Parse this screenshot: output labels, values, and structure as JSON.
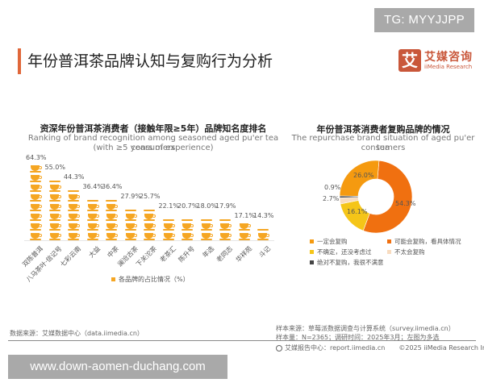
{
  "watermark_top": "TG: MYYJJPP",
  "watermark_bottom": "www.down-aomen-duchang.com",
  "header": {
    "title": "年份普洱茶品牌认知与复购行为分析",
    "logo_mark": "艾",
    "logo_cn": "艾媒咨询",
    "logo_en": "iiMedia Research",
    "accent_color": "#e0673a"
  },
  "left_chart": {
    "title_cn": "资深年份普洱茶消费者（接触年限≥5年）品牌知名度排名",
    "title_en_1": "Ranking of brand recognition among seasoned aged pu'er tea consumers",
    "title_en_2": "(with ≥5 years of experience)",
    "legend": "各品牌的占比情况（%）"
  },
  "right_chart": {
    "title_cn": "年份普洱茶消费者复购品牌的情况",
    "title_en_1": "The repurchase brand situation of aged pu'er tea",
    "title_en_2": "consumers"
  },
  "chart_data": [
    {
      "type": "bar",
      "title": "资深年份普洱茶消费者（接触年限≥5年）品牌知名度排名",
      "subtitle": "Ranking of brand recognition among seasoned aged pu'er tea consumers (with ≥5 years of experience)",
      "categories": [
        "双陈普洱",
        "八马茶叶·信记号",
        "七彩云南",
        "大益",
        "中茶",
        "澜沧古茶",
        "下关沱茶",
        "老茶汇",
        "陈升号",
        "年选",
        "老同志",
        "华祥苑",
        "斗记"
      ],
      "values": [
        64.3,
        55.0,
        44.3,
        36.4,
        36.4,
        27.9,
        25.7,
        22.1,
        20.7,
        18.0,
        17.9,
        17.1,
        14.3
      ],
      "value_labels": [
        "64.3%",
        "55.0%",
        "44.3%",
        "36.4%",
        "36.4%",
        "27.9%",
        "25.7%",
        "22.1%",
        "20.7%",
        "18.0%",
        "17.9%",
        "17.1%",
        "14.3%"
      ],
      "legend": [
        "各品牌的占比情况（%）"
      ],
      "xlabel": "",
      "ylabel": "",
      "ylim": [
        0,
        70
      ],
      "grid": false,
      "color": "#f5a623"
    },
    {
      "type": "pie",
      "variant": "donut",
      "title": "年份普洱茶消费者复购品牌的情况",
      "subtitle": "The repurchase brand situation of aged pu'er tea consumers",
      "categories": [
        "可能会复购，看具体情况",
        "不确定，还没考虑过",
        "不太会复购",
        "绝对不复购，我很不满意",
        "一定会复购"
      ],
      "values": [
        54.3,
        16.1,
        2.7,
        0.9,
        26.0
      ],
      "value_labels": [
        "54.3%",
        "16.1%",
        "2.7%",
        "0.9%",
        "26.0%"
      ],
      "colors": [
        "#f07010",
        "#f5c518",
        "#f8dcc0",
        "#444444",
        "#f59a10"
      ],
      "legend_position": "bottom"
    }
  ],
  "donut_legend": [
    {
      "label": "一定会复购",
      "color": "#f59a10"
    },
    {
      "label": "可能会复购，看具体情况",
      "color": "#f07010"
    },
    {
      "label": "不确定，还没考虑过",
      "color": "#f5c518"
    },
    {
      "label": "不太会复购",
      "color": "#f8dcc0"
    },
    {
      "label": "绝对不复购，我很不满意",
      "color": "#444444"
    }
  ],
  "footer": {
    "data_source": "数据来源：艾媒数据中心（data.iimedia.cn）",
    "sample_source": "样本来源：草莓派数据调查与计算系统（survey.iimedia.cn）",
    "sample_size": "样本量：N=2365；调研时间：2025年3月；左图为多选",
    "report_center": "艾媒报告中心：report.iimedia.cn",
    "copyright": "©2025  iiMedia Research Inc"
  }
}
